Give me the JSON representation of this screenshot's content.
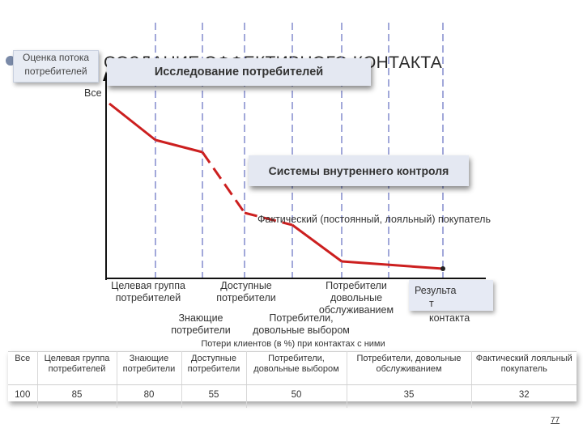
{
  "heading": "СОЗДАНИЕ ЭФФЕКТИВНОГО КОНТАКТА",
  "boxes": {
    "flow": "Оценка потока потребителей",
    "study": "Исследование потребителей",
    "control": "Системы внутреннего контроля",
    "result_parts": [
      "Результа",
      "т",
      "контакта"
    ]
  },
  "labels": {
    "all": "Все",
    "factual": "Фактический (постоянный, лояльный) покупатель",
    "target": "Целевая группа потребителей",
    "knowing": "Знающие потребители",
    "accessible": "Доступные потребители",
    "sat_choice": "Потребители, довольные выбором",
    "sat_service": "Потребители довольные обслуживанием"
  },
  "chart_data": {
    "type": "line",
    "categories": [
      "Все",
      "Целевая группа потребителей",
      "Знающие потребители",
      "Доступные потребители",
      "Потребители, довольные выбором",
      "Потребители, довольные обслуживанием",
      "Фактический лояльный покупатель"
    ],
    "values": [
      100,
      85,
      80,
      55,
      50,
      35,
      32
    ],
    "ylim": [
      0,
      100
    ],
    "line_color": "#cc1f1f",
    "grid_color": "#8a92d0"
  },
  "table": {
    "caption": "Потери клиентов (в %) при контактах с ними",
    "headers": [
      "Все",
      "Целевая группа потребителей",
      "Знающие потребители",
      "Доступные потребители",
      "Потребители, довольные выбором",
      "Потребители, довольные обслуживанием",
      "Фактический лояльный покупатель"
    ],
    "values": [
      "100",
      "85",
      "80",
      "55",
      "50",
      "35",
      "32"
    ]
  },
  "page_number": "77"
}
